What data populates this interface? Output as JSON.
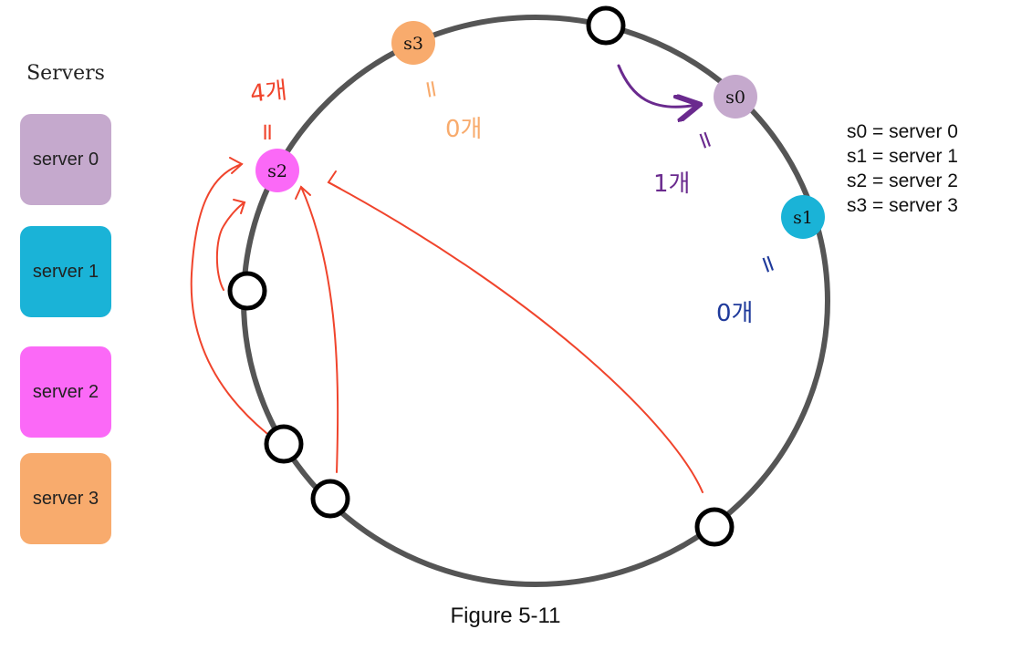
{
  "legend": {
    "title": "Servers",
    "items": [
      {
        "label": "server 0",
        "color": "#c5a9cd"
      },
      {
        "label": "server 1",
        "color": "#1ab3d7"
      },
      {
        "label": "server 2",
        "color": "#fb69f7"
      },
      {
        "label": "server 3",
        "color": "#f8ab6d"
      }
    ]
  },
  "ring_servers": {
    "s0": {
      "label": "s0",
      "color": "#c5a9cd"
    },
    "s1": {
      "label": "s1",
      "color": "#1ab3d7"
    },
    "s2": {
      "label": "s2",
      "color": "#fb69f7"
    },
    "s3": {
      "label": "s3",
      "color": "#f8ab6d"
    }
  },
  "key": [
    "s0 = server 0",
    "s1 = server 1",
    "s2 = server 2",
    "s3 = server 3"
  ],
  "annotations": {
    "s2_count": "4개",
    "s3_count": "0개",
    "s0_count": "1개",
    "s1_count": "0개",
    "equals_mark": "="
  },
  "caption": "Figure 5-11",
  "colors": {
    "ring": "#555555",
    "red_arrow": "#f0442c",
    "purple_arrow": "#6a2a8e",
    "blue_note": "#1f3a9b"
  }
}
